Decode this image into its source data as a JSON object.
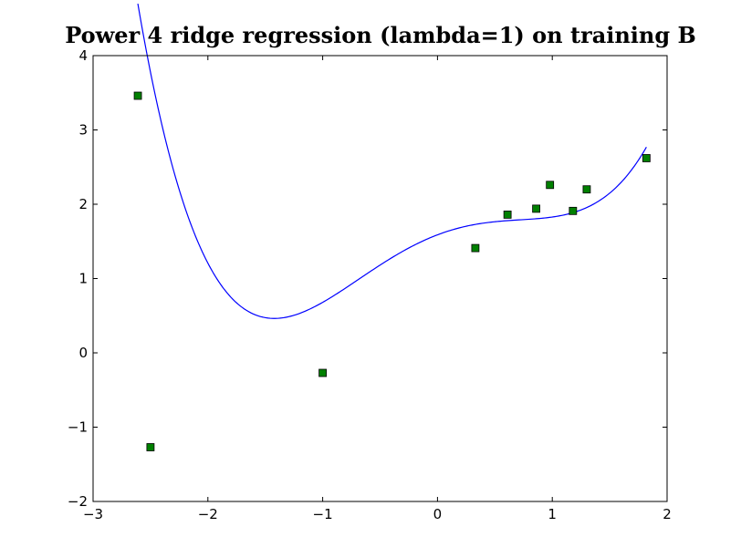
{
  "chart_data": {
    "type": "scatter",
    "title": "Power 4 ridge regression (lambda=1)  on training B",
    "xlabel": "",
    "ylabel": "",
    "xlim": [
      -3,
      2
    ],
    "ylim": [
      -2,
      4
    ],
    "x_ticks": [
      -3,
      -2,
      -1,
      0,
      1,
      2
    ],
    "y_ticks": [
      -2,
      -1,
      0,
      1,
      2,
      3,
      4
    ],
    "x_tick_labels": [
      "−3",
      "−2",
      "−1",
      "0",
      "1",
      "2"
    ],
    "y_tick_labels": [
      "−2",
      "−1",
      "0",
      "1",
      "2",
      "3",
      "4"
    ],
    "grid": false,
    "legend": "none",
    "series": [
      {
        "kind": "points",
        "marker": "square",
        "color": "#008000",
        "x": [
          -2.61,
          -2.5,
          -1.0,
          0.33,
          0.61,
          0.86,
          0.98,
          1.18,
          1.3,
          1.82
        ],
        "y": [
          3.46,
          -1.27,
          -0.27,
          1.41,
          1.86,
          1.94,
          2.26,
          1.91,
          2.2,
          2.62
        ]
      },
      {
        "kind": "line",
        "color": "#0000ff",
        "coefficients": [
          1.5883,
          0.5864,
          -0.5037,
          -0.0124,
          0.1692
        ],
        "x_range": [
          -2.61,
          1.82
        ]
      }
    ]
  }
}
